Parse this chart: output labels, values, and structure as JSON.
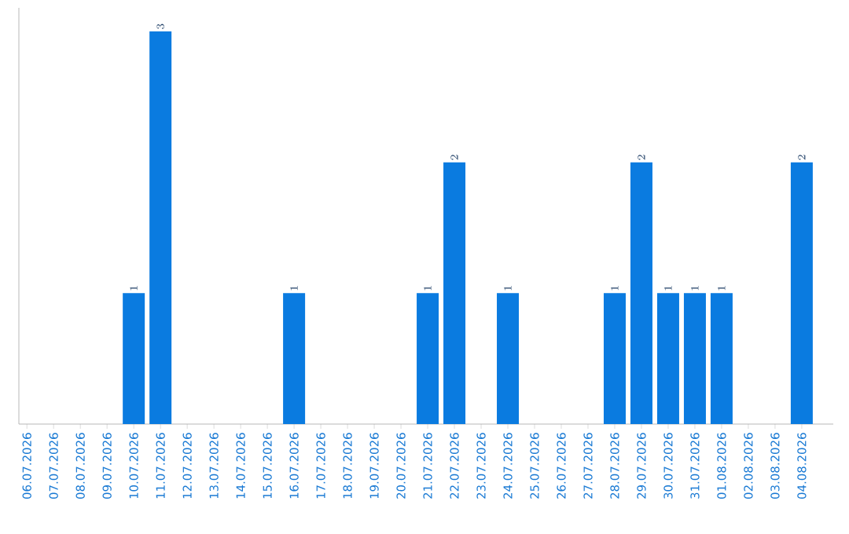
{
  "chart_data": {
    "type": "bar",
    "categories": [
      "06.07.2026",
      "07.07.2026",
      "08.07.2026",
      "09.07.2026",
      "10.07.2026",
      "11.07.2026",
      "12.07.2026",
      "13.07.2026",
      "14.07.2026",
      "15.07.2026",
      "16.07.2026",
      "17.07.2026",
      "18.07.2026",
      "19.07.2026",
      "20.07.2026",
      "21.07.2026",
      "22.07.2026",
      "23.07.2026",
      "24.07.2026",
      "25.07.2026",
      "26.07.2026",
      "27.07.2026",
      "28.07.2026",
      "29.07.2026",
      "30.07.2026",
      "31.07.2026",
      "01.08.2026",
      "02.08.2026",
      "03.08.2026",
      "04.08.2026"
    ],
    "values": [
      null,
      null,
      null,
      null,
      1,
      3,
      null,
      null,
      null,
      null,
      1,
      null,
      null,
      null,
      null,
      1,
      2,
      null,
      1,
      null,
      null,
      null,
      1,
      2,
      1,
      1,
      1,
      null,
      null,
      2
    ],
    "color": "#0a7be0",
    "data_labels": true,
    "tick_labels": "x"
  }
}
